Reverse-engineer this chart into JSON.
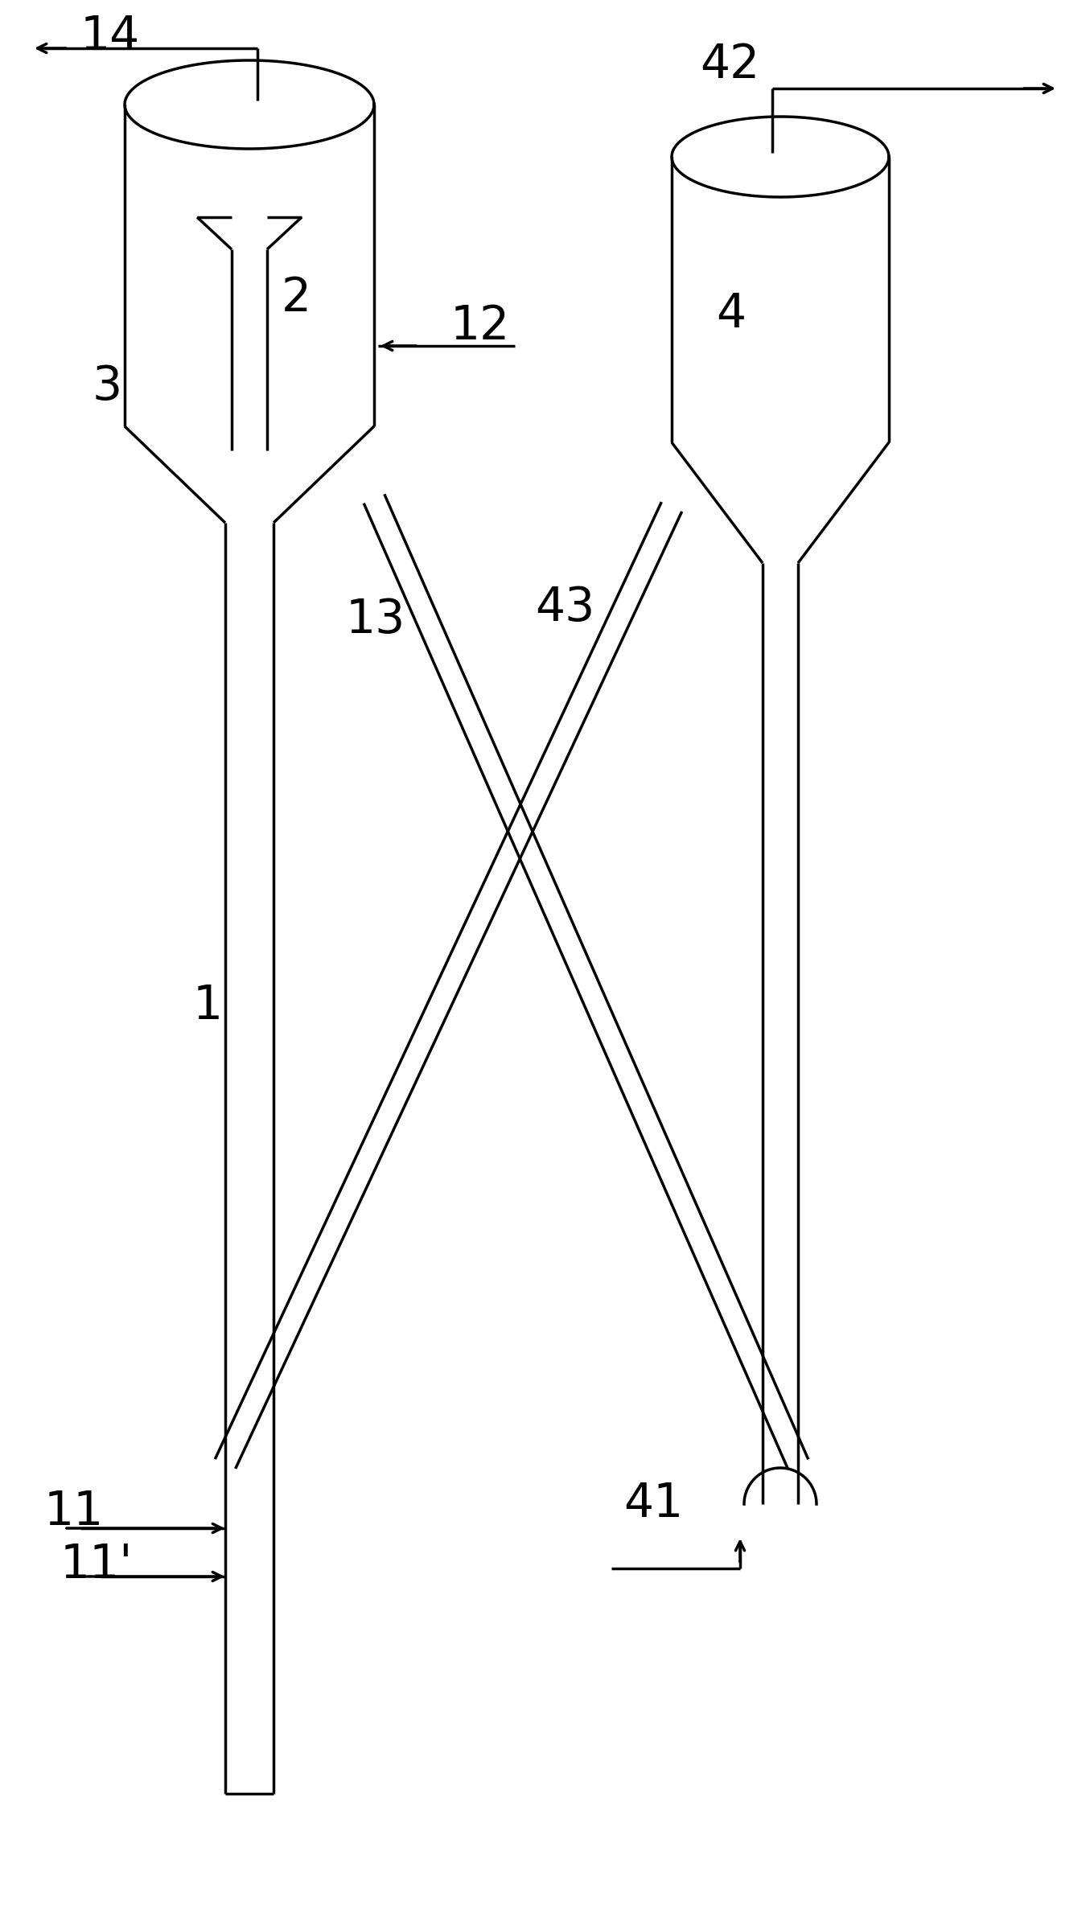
{
  "background_color": "#ffffff",
  "line_color": "#000000",
  "line_width": 2.5,
  "fig_width": 13.55,
  "fig_height": 24.02,
  "dpi": 100
}
